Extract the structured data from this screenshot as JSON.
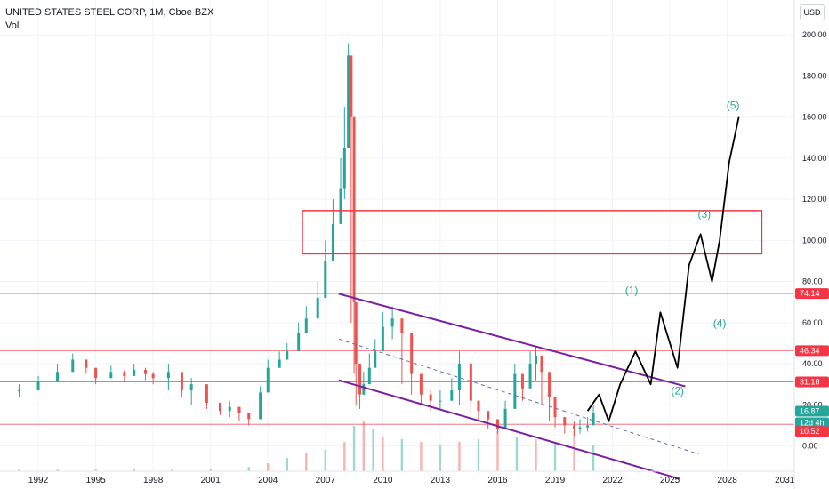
{
  "header": {
    "symbol": "UNITED STATES STEEL CORP, 1M, Cboe BZX",
    "indicator": "Vol",
    "currency_button": "USD"
  },
  "chart_data": {
    "type": "candlestick",
    "title": "UNITED STATES STEEL CORP, 1M, Cboe BZX",
    "scale": "linear",
    "grid": true,
    "x_tick_labels": [
      "1992",
      "1995",
      "1998",
      "2001",
      "2004",
      "2007",
      "2010",
      "2013",
      "2016",
      "2019",
      "2022",
      "2025",
      "2028",
      "2031"
    ],
    "y_tick_labels": [
      "0.00",
      "20.00",
      "40.00",
      "60.00",
      "80.00",
      "100.00",
      "120.00",
      "140.00",
      "160.00",
      "180.00",
      "200.00"
    ],
    "xlim": [
      1990,
      2031.5
    ],
    "ylim": [
      -8,
      204
    ],
    "price_series": {
      "x": [
        1991.0,
        1992.0,
        1993.0,
        1993.8,
        1994.5,
        1995.0,
        1995.8,
        1996.5,
        1997.0,
        1997.6,
        1998.0,
        1998.8,
        1999.5,
        2000.0,
        2000.8,
        2001.5,
        2002.0,
        2002.5,
        2003.0,
        2003.6,
        2004.0,
        2004.6,
        2005.0,
        2005.6,
        2006.0,
        2006.6,
        2007.0,
        2007.4,
        2007.8,
        2008.0,
        2008.2,
        2008.35,
        2008.5,
        2008.6,
        2008.8,
        2009.0,
        2009.3,
        2009.6,
        2010.0,
        2010.5,
        2011.0,
        2011.5,
        2012.0,
        2012.5,
        2013.0,
        2013.6,
        2014.0,
        2014.6,
        2015.0,
        2015.5,
        2016.0,
        2016.4,
        2016.9,
        2017.3,
        2017.7,
        2018.0,
        2018.3,
        2018.7,
        2019.0,
        2019.5,
        2020.0,
        2020.3,
        2020.7,
        2021.0
      ],
      "close": [
        27,
        31,
        36,
        42,
        38,
        33,
        36,
        34,
        37,
        35,
        33,
        36,
        27,
        30,
        21,
        17,
        19,
        16,
        13,
        26,
        38,
        42,
        46,
        55,
        62,
        72,
        90,
        108,
        125,
        145,
        190,
        160,
        70,
        40,
        25,
        30,
        38,
        46,
        58,
        62,
        55,
        35,
        25,
        22,
        22,
        27,
        40,
        22,
        17,
        13,
        8,
        18,
        35,
        28,
        40,
        44,
        36,
        24,
        14,
        10,
        8,
        9,
        10,
        16
      ],
      "high": [
        30,
        34,
        40,
        45,
        42,
        36,
        39,
        37,
        40,
        38,
        36,
        40,
        30,
        33,
        24,
        20,
        22,
        19,
        16,
        29,
        42,
        46,
        50,
        60,
        68,
        80,
        100,
        120,
        140,
        165,
        196,
        180,
        80,
        50,
        30,
        36,
        45,
        52,
        65,
        68,
        60,
        40,
        30,
        27,
        27,
        33,
        46,
        28,
        21,
        17,
        12,
        22,
        40,
        35,
        46,
        48,
        42,
        30,
        18,
        14,
        12,
        13,
        14,
        20
      ],
      "low": [
        24,
        28,
        33,
        38,
        35,
        30,
        33,
        31,
        34,
        32,
        30,
        27,
        24,
        20,
        18,
        15,
        14,
        12,
        10,
        22,
        34,
        38,
        42,
        50,
        56,
        65,
        80,
        95,
        110,
        120,
        150,
        60,
        35,
        20,
        18,
        25,
        32,
        40,
        50,
        52,
        30,
        25,
        20,
        17,
        18,
        22,
        20,
        16,
        12,
        8,
        6,
        10,
        25,
        22,
        30,
        32,
        20,
        12,
        9,
        6,
        5,
        6,
        7,
        12
      ]
    },
    "volume_max_value": 1,
    "volume_series": {
      "x": [
        1991,
        1993,
        1995,
        1997,
        1999,
        2001,
        2003,
        2004,
        2005,
        2006,
        2007,
        2008,
        2008.5,
        2009,
        2009.5,
        2010,
        2011,
        2012,
        2013,
        2014,
        2015,
        2016,
        2017,
        2018,
        2019,
        2020,
        2021
      ],
      "values": [
        0.03,
        0.03,
        0.03,
        0.04,
        0.04,
        0.05,
        0.08,
        0.15,
        0.25,
        0.35,
        0.4,
        0.55,
        0.85,
        0.95,
        0.8,
        0.65,
        0.6,
        0.55,
        0.5,
        0.55,
        0.6,
        0.75,
        0.65,
        0.6,
        0.55,
        0.75,
        0.5
      ]
    },
    "horizontal_levels": [
      74.14,
      46.34,
      31.18,
      10.52
    ],
    "price_labels": [
      "74.14",
      "46.34",
      "31.18",
      "16.87",
      "12d 4h",
      "10.52"
    ],
    "channel": {
      "upper": {
        "x": [
          2007.7,
          2025.8
        ],
        "y": [
          74,
          29
        ]
      },
      "middle": {
        "x": [
          2007.7,
          2026.5
        ],
        "y": [
          52,
          -4
        ]
      },
      "lower": {
        "x": [
          2007.7,
          2025.5
        ],
        "y": [
          32,
          -16
        ]
      }
    },
    "box": {
      "x": [
        2005.8,
        2029.8
      ],
      "y": [
        93.5,
        114.5
      ]
    },
    "projection": {
      "x": [
        2020.7,
        2021.3,
        2021.8,
        2022.4,
        2023.2,
        2024.0,
        2024.5,
        2025.0,
        2025.4,
        2026.0,
        2026.6,
        2027.2,
        2027.6,
        2028.1,
        2028.6
      ],
      "y": [
        17,
        25,
        12,
        30,
        46,
        30,
        65,
        50,
        38,
        88,
        103,
        80,
        100,
        138,
        160
      ]
    },
    "wave_labels": [
      {
        "label": "(1)",
        "x": 2023.0,
        "y": 74
      },
      {
        "label": "(2)",
        "x": 2025.4,
        "y": 25
      },
      {
        "label": "(3)",
        "x": 2026.8,
        "y": 111
      },
      {
        "label": "(4)",
        "x": 2027.6,
        "y": 58
      },
      {
        "label": "(5)",
        "x": 2028.3,
        "y": 164
      }
    ],
    "colors": {
      "up": "#26a69a",
      "down": "#ef5350",
      "level_line": "#f23645",
      "channel": "#7b1fa2",
      "box": "#f23645",
      "projection": "#000000",
      "wave_label": "#26a69a",
      "vol_up": "#9fd8d2",
      "vol_down": "#f7b3b1"
    }
  }
}
